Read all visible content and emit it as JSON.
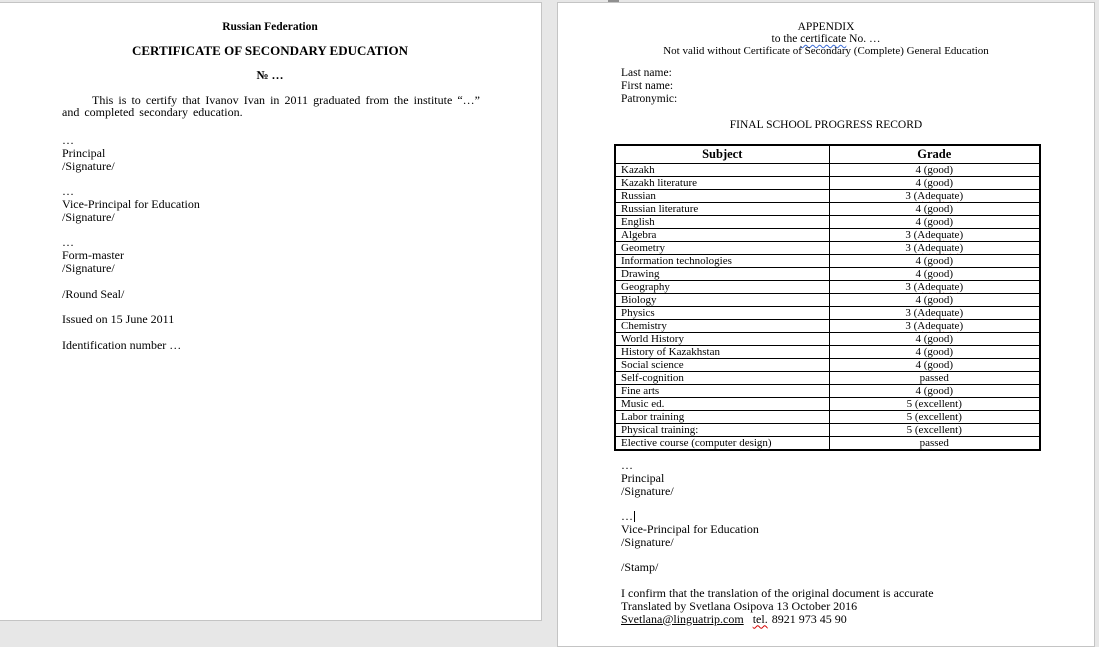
{
  "colors": {
    "page_background": "#ffffff",
    "workspace_background": "#e7e7e7",
    "spell_error_underline": "#d40000",
    "grammar_error_underline": "#3a6bd6"
  },
  "left_page": {
    "country": "Russian Federation",
    "title": "CERTIFICATE OF SECONDARY EDUCATION",
    "number": "№ …",
    "body": "This is to certify that Ivanov Ivan in 2011 graduated from the institute “…” and completed secondary education.",
    "lines": [
      "…",
      "Principal",
      "/Signature/",
      "",
      "…",
      "Vice-Principal for Education",
      "/Signature/",
      "",
      "…",
      "Form-master",
      "/Signature/",
      "",
      "/Round Seal/",
      "",
      "Issued on 15 June 2011",
      "",
      "Identification number …"
    ]
  },
  "right_page": {
    "appendix_title": "APPENDIX",
    "cert_line": {
      "pre": "to the ",
      "word": "certificate",
      "post": " No. …"
    },
    "validity": "Not valid without Certificate of Secondary (Complete) General Education",
    "names": [
      "Last name:",
      "First name:",
      "Patronymic:"
    ],
    "record_title": "FINAL SCHOOL PROGRESS RECORD",
    "table": {
      "headers": [
        "Subject",
        "Grade"
      ],
      "rows": [
        {
          "subject": "Kazakh",
          "grade": "4 (good)"
        },
        {
          "subject": "Kazakh literature",
          "grade": "4 (good)"
        },
        {
          "subject": "Russian",
          "grade": "3 (Adequate)",
          "grade_err": "Adequate"
        },
        {
          "subject": "Russian literature",
          "grade": "4 (good)"
        },
        {
          "subject": "English",
          "grade": "4 (good)"
        },
        {
          "subject": "Algebra",
          "grade": "3 (Adequate)",
          "grade_err": "Adequate"
        },
        {
          "subject": "Geometry",
          "grade": "3 (Adequate)",
          "grade_err": "Adequate"
        },
        {
          "subject": "Information technologies",
          "grade": "4 (good)"
        },
        {
          "subject": "Drawing",
          "grade": "4 (good)"
        },
        {
          "subject": "Geography",
          "grade": "3 (Adequate)",
          "grade_err": "Adequate"
        },
        {
          "subject": "Biology",
          "grade": "4 (good)"
        },
        {
          "subject": "Physics",
          "grade": "3 (Adequate)",
          "grade_err": "Adequate"
        },
        {
          "subject": "Chemistry",
          "grade": "3 (Adequate)",
          "grade_err": "Adequate"
        },
        {
          "subject": "World History",
          "grade": "4 (good)"
        },
        {
          "subject": "History of Kazakhstan",
          "grade": "4 (good)"
        },
        {
          "subject": "Social science",
          "grade": "4 (good)"
        },
        {
          "subject": "Self-cognition",
          "grade": "passed"
        },
        {
          "subject": "Fine arts",
          "grade": "4 (good)"
        },
        {
          "subject": "Music ed.",
          "grade": "5 (excellent)",
          "subject_err": "ed."
        },
        {
          "subject": "Labor training",
          "grade": "5 (excellent)"
        },
        {
          "subject": "Physical training:",
          "grade": "5 (excellent)"
        },
        {
          "subject": "Elective course (computer design)",
          "grade": "passed"
        }
      ]
    },
    "sign1": [
      "…",
      "Principal",
      "/Signature/"
    ],
    "dots_with_caret": "…",
    "sign2": [
      "Vice-Principal for Education",
      "/Signature/"
    ],
    "stamp": "/Stamp/",
    "confirm": "I confirm that the translation of the original document is accurate",
    "translated": "Translated by Svetlana Osipova 13 October 2016",
    "contact": {
      "email": "Svetlana@linguatrip.com",
      "tel": "tel.",
      "phone": "8921 973 45 90"
    }
  }
}
